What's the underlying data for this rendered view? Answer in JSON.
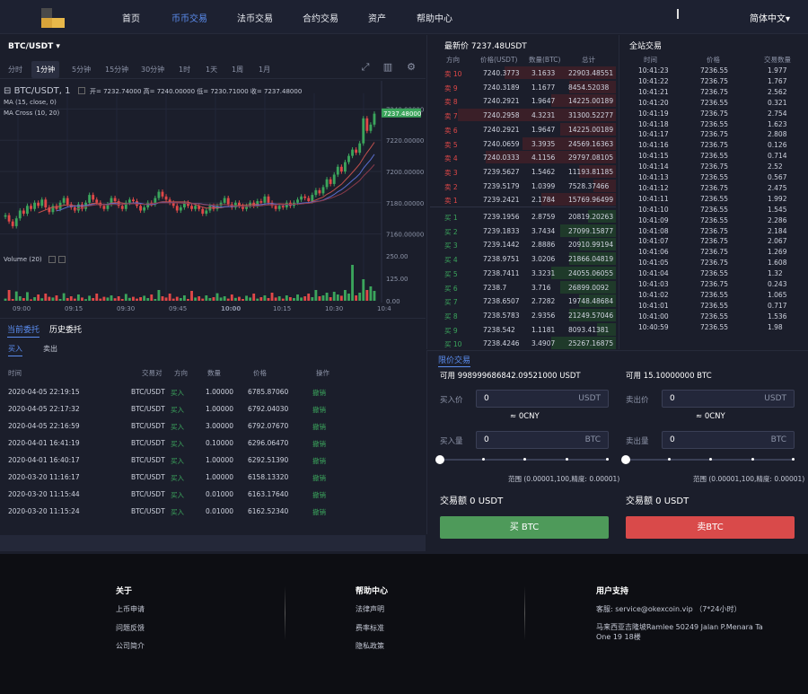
{
  "nav": {
    "items": [
      "首页",
      "币币交易",
      "法币交易",
      "合约交易",
      "资产",
      "帮助中心"
    ],
    "active_index": 1,
    "language": "简体中文▾"
  },
  "chart_header": {
    "pair": "BTC/USDT ▾",
    "timeframes": [
      "分时",
      "1分钟",
      "5分钟",
      "15分钟",
      "30分钟",
      "1时",
      "1天",
      "1周",
      "1月"
    ],
    "selected_timeframe": "1分钟",
    "symbol_line": "BTC/USDT, 1",
    "ohlc": "开= 7232.74000  高= 7240.00000  低= 7230.71000  收= 7237.48000",
    "ma_label": "MA (15, close, 0)",
    "macross_label": "MA Cross (10, 20)",
    "volume_label": "Volume (20)"
  },
  "chart_data": {
    "type": "candlestick",
    "price_ticks": [
      "7160.00000",
      "7180.00000",
      "7200.00000",
      "7220.00000",
      "7240.00000"
    ],
    "last_price_label": "7237.48000",
    "volume_ticks": [
      "0.00",
      "125.00",
      "250.00"
    ],
    "time_ticks": [
      "09:00",
      "09:15",
      "09:30",
      "09:45",
      "10:00",
      "10:15",
      "10:30",
      "10:4"
    ],
    "ylim": [
      7150,
      7250
    ],
    "volume_ylim": [
      0,
      250
    ],
    "closes": [
      7172,
      7168,
      7165,
      7170,
      7175,
      7173,
      7178,
      7176,
      7180,
      7178,
      7182,
      7177,
      7174,
      7178,
      7176,
      7180,
      7183,
      7179,
      7177,
      7175,
      7179,
      7176,
      7180,
      7185,
      7182,
      7180,
      7178,
      7176,
      7179,
      7183,
      7181,
      7178,
      7176,
      7180,
      7182,
      7181,
      7178,
      7175,
      7177,
      7180,
      7179,
      7183,
      7187,
      7184,
      7182,
      7180,
      7178,
      7175,
      7177,
      7180,
      7178,
      7176,
      7178,
      7176,
      7173,
      7175,
      7178,
      7176,
      7178,
      7180,
      7183,
      7179,
      7177,
      7180,
      7178,
      7176,
      7178,
      7180,
      7178,
      7181,
      7180,
      7184,
      7180,
      7178,
      7176,
      7178,
      7177,
      7180,
      7178,
      7180,
      7182,
      7184,
      7183,
      7181,
      7185,
      7188,
      7186,
      7190,
      7195,
      7192,
      7198,
      7203,
      7200,
      7206,
      7210,
      7214,
      7212,
      7218,
      7234,
      7226,
      7230,
      7237
    ],
    "volumes": [
      12,
      60,
      10,
      52,
      25,
      15,
      48,
      8,
      20,
      35,
      14,
      40,
      22,
      18,
      30,
      10,
      42,
      15,
      25,
      12,
      35,
      18,
      9,
      28,
      15,
      40,
      12,
      22,
      18,
      30,
      14,
      25,
      10,
      38,
      16,
      22,
      12,
      20,
      28,
      15,
      35,
      10,
      60,
      25,
      18,
      40,
      12,
      22,
      15,
      30,
      10,
      55,
      18,
      25,
      12,
      30,
      15,
      20,
      42,
      18,
      25,
      12,
      35,
      16,
      22,
      10,
      28,
      18,
      40,
      12,
      20,
      30,
      15,
      45,
      18,
      25,
      12,
      30,
      20,
      15,
      35,
      18,
      25,
      40,
      20,
      60,
      25,
      30,
      45,
      20,
      50,
      35,
      28,
      60,
      40,
      200,
      30,
      45,
      120,
      60,
      80,
      55
    ]
  },
  "orders": {
    "tabs": [
      "当前委托",
      "历史委托"
    ],
    "subtabs": [
      "买入",
      "卖出"
    ],
    "headers": [
      "时间",
      "交易对",
      "方向",
      "数量",
      "价格",
      "操作"
    ],
    "rows": [
      [
        "2020-04-05 22:19:15",
        "BTC/USDT",
        "买入",
        "1.00000",
        "6785.87060",
        "撤销"
      ],
      [
        "2020-04-05 22:17:32",
        "BTC/USDT",
        "买入",
        "1.00000",
        "6792.04030",
        "撤销"
      ],
      [
        "2020-04-05 22:16:59",
        "BTC/USDT",
        "买入",
        "3.00000",
        "6792.07670",
        "撤销"
      ],
      [
        "2020-04-01 16:41:19",
        "BTC/USDT",
        "买入",
        "0.10000",
        "6296.06470",
        "撤销"
      ],
      [
        "2020-04-01 16:40:17",
        "BTC/USDT",
        "买入",
        "1.00000",
        "6292.51390",
        "撤销"
      ],
      [
        "2020-03-20 11:16:17",
        "BTC/USDT",
        "买入",
        "1.00000",
        "6158.13320",
        "撤销"
      ],
      [
        "2020-03-20 11:15:44",
        "BTC/USDT",
        "买入",
        "0.01000",
        "6163.17640",
        "撤销"
      ],
      [
        "2020-03-20 11:15:24",
        "BTC/USDT",
        "买入",
        "0.01000",
        "6162.52340",
        "撤销"
      ]
    ]
  },
  "orderbook": {
    "title": "最新价 7237.48USDT",
    "headers": [
      "方向",
      "价格(USDT)",
      "数量(BTC)",
      "总计"
    ],
    "asks": [
      [
        "卖 10",
        "7240.3773",
        "3.1633",
        "22903.48551"
      ],
      [
        "卖 9",
        "7240.3189",
        "1.1677",
        "8454.52038"
      ],
      [
        "卖 8",
        "7240.2921",
        "1.9647",
        "14225.00189"
      ],
      [
        "卖 7",
        "7240.2958",
        "4.3231",
        "31300.52277"
      ],
      [
        "卖 6",
        "7240.2921",
        "1.9647",
        "14225.00189"
      ],
      [
        "卖 5",
        "7240.0659",
        "3.3935",
        "24569.16363"
      ],
      [
        "卖 4",
        "7240.0333",
        "4.1156",
        "29797.08105"
      ],
      [
        "卖 3",
        "7239.5627",
        "1.5462",
        "11193.81185"
      ],
      [
        "卖 2",
        "7239.5179",
        "1.0399",
        "7528.37466"
      ],
      [
        "卖 1",
        "7239.2421",
        "2.1784",
        "15769.96499"
      ]
    ],
    "bids": [
      [
        "买 1",
        "7239.1956",
        "2.8759",
        "20819.20263"
      ],
      [
        "买 2",
        "7239.1833",
        "3.7434",
        "27099.15877"
      ],
      [
        "买 3",
        "7239.1442",
        "2.8886",
        "20910.99194"
      ],
      [
        "买 4",
        "7238.9751",
        "3.0206",
        "21866.04819"
      ],
      [
        "买 5",
        "7238.7411",
        "3.3231",
        "24055.06055"
      ],
      [
        "买 6",
        "7238.7",
        "3.716",
        "26899.0092"
      ],
      [
        "买 7",
        "7238.6507",
        "2.7282",
        "19748.48684"
      ],
      [
        "买 8",
        "7238.5783",
        "2.9356",
        "21249.57046"
      ],
      [
        "买 9",
        "7238.542",
        "1.1181",
        "8093.41381"
      ],
      [
        "买 10",
        "7238.4246",
        "3.4907",
        "25267.16875"
      ]
    ],
    "ask_depth": [
      0.6,
      0.25,
      0.35,
      0.85,
      0.3,
      0.5,
      0.7,
      0.2,
      0.12,
      0.4
    ],
    "bid_depth": [
      0.15,
      0.3,
      0.2,
      0.25,
      0.35,
      0.3,
      0.2,
      0.25,
      0.1,
      0.35
    ]
  },
  "trades": {
    "title": "全站交易",
    "headers": [
      "时间",
      "价格",
      "交易数量"
    ],
    "rows": [
      [
        "10:41:23",
        "7236.55",
        "1.977"
      ],
      [
        "10:41:22",
        "7236.75",
        "1.767"
      ],
      [
        "10:41:21",
        "7236.75",
        "2.562"
      ],
      [
        "10:41:20",
        "7236.55",
        "0.321"
      ],
      [
        "10:41:19",
        "7236.75",
        "2.754"
      ],
      [
        "10:41:18",
        "7236.55",
        "1.623"
      ],
      [
        "10:41:17",
        "7236.75",
        "2.808"
      ],
      [
        "10:41:16",
        "7236.75",
        "0.126"
      ],
      [
        "10:41:15",
        "7236.55",
        "0.714"
      ],
      [
        "10:41:14",
        "7236.75",
        "2.52"
      ],
      [
        "10:41:13",
        "7236.55",
        "0.567"
      ],
      [
        "10:41:12",
        "7236.75",
        "2.475"
      ],
      [
        "10:41:11",
        "7236.55",
        "1.992"
      ],
      [
        "10:41:10",
        "7236.55",
        "1.545"
      ],
      [
        "10:41:09",
        "7236.55",
        "2.286"
      ],
      [
        "10:41:08",
        "7236.75",
        "2.184"
      ],
      [
        "10:41:07",
        "7236.75",
        "2.067"
      ],
      [
        "10:41:06",
        "7236.75",
        "1.269"
      ],
      [
        "10:41:05",
        "7236.75",
        "1.608"
      ],
      [
        "10:41:04",
        "7236.55",
        "1.32"
      ],
      [
        "10:41:03",
        "7236.75",
        "0.243"
      ],
      [
        "10:41:02",
        "7236.55",
        "1.065"
      ],
      [
        "10:41:01",
        "7236.55",
        "0.717"
      ],
      [
        "10:41:00",
        "7236.55",
        "1.536"
      ],
      [
        "10:40:59",
        "7236.55",
        "1.98"
      ]
    ]
  },
  "trade_form": {
    "tab": "限价交易",
    "buy": {
      "available": "可用 998999686842.09521000 USDT",
      "price_label": "买入价",
      "price_value": "0",
      "price_unit": "USDT",
      "cny": "≈ 0CNY",
      "amount_label": "买入量",
      "amount_value": "0",
      "amount_unit": "BTC",
      "range": "范围 (0.00001,100,精度: 0.00001)",
      "total": "交易额 0 USDT",
      "button": "买 BTC",
      "slider_level": 0
    },
    "sell": {
      "available": "可用 15.10000000 BTC",
      "price_label": "卖出价",
      "price_value": "0",
      "price_unit": "USDT",
      "cny": "≈ 0CNY",
      "amount_label": "卖出量",
      "amount_value": "0",
      "amount_unit": "BTC",
      "range": "范围 (0.00001,100,精度: 0.00001)",
      "total": "交易额 0 USDT",
      "button": "卖BTC",
      "slider_level": 0
    }
  },
  "footer": {
    "about": {
      "title": "关于",
      "links": [
        "上币申请",
        "问题反馈",
        "公司简介"
      ]
    },
    "help": {
      "title": "帮助中心",
      "links": [
        "法律声明",
        "费率标准",
        "隐私政策"
      ]
    },
    "support": {
      "title": "用户支持",
      "email_line": "客服:  service@okexcoin.vip  （7*24小时）",
      "address_line1": "马来西亚吉隆坡Ramlee 50249 Jalan P.Menara Ta",
      "address_line2": "One 19 18楼"
    }
  },
  "colors": {
    "up": "#3ba55c",
    "down": "#e04848",
    "accent": "#5b8def",
    "buy_button": "#4e9a5a",
    "sell_button": "#d94a4a"
  }
}
